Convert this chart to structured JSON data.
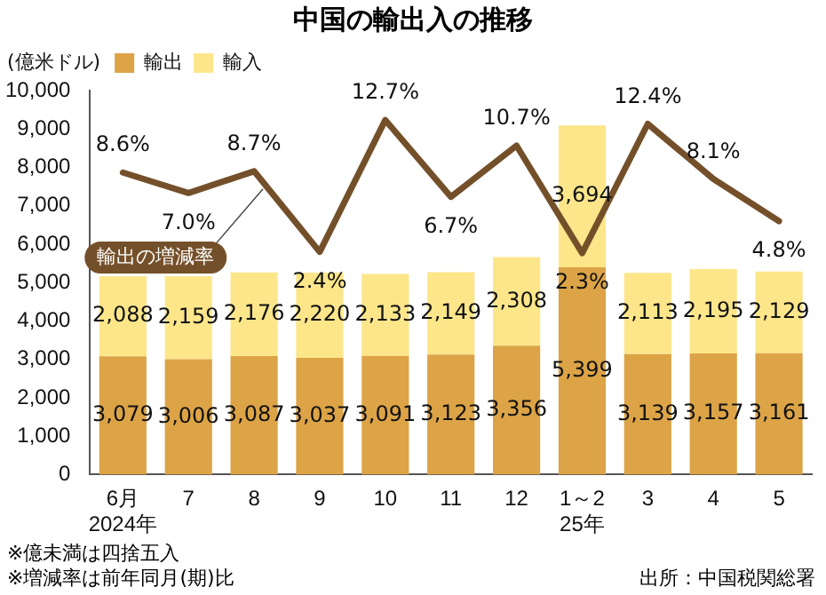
{
  "chart_data": {
    "type": "bar",
    "title": "中国の輸出入の推移",
    "ylabel": "(億米ドル)",
    "categories": [
      "6月\n2024年",
      "7",
      "8",
      "9",
      "10",
      "11",
      "12",
      "1～2\n25年",
      "3",
      "4",
      "5"
    ],
    "stacked": true,
    "legend": "top left",
    "grid": false,
    "ylim": [
      0,
      10000
    ],
    "yticks": [
      {
        "value": 0,
        "label": "0"
      },
      {
        "value": 1000,
        "label": "1,000"
      },
      {
        "value": 2000,
        "label": "2,000"
      },
      {
        "value": 3000,
        "label": "3,000"
      },
      {
        "value": 4000,
        "label": "4,000"
      },
      {
        "value": 5000,
        "label": "5,000"
      },
      {
        "value": 6000,
        "label": "6,000"
      },
      {
        "value": 7000,
        "label": "7,000"
      },
      {
        "value": 8000,
        "label": "8,000"
      },
      {
        "value": 9000,
        "label": "9,000"
      },
      {
        "value": 10000,
        "label": "10,000"
      }
    ],
    "series": [
      {
        "name": "輸出",
        "color": "#dca446",
        "values": [
          3079,
          3006,
          3087,
          3037,
          3091,
          3123,
          3356,
          5399,
          3139,
          3157,
          3161
        ],
        "value_labels": [
          "3,079",
          "3,006",
          "3,087",
          "3,037",
          "3,091",
          "3,123",
          "3,356",
          "5,399",
          "3,139",
          "3,157",
          "3,161"
        ]
      },
      {
        "name": "輸入",
        "color": "#fde68a",
        "values": [
          2088,
          2159,
          2176,
          2220,
          2133,
          2149,
          2308,
          3694,
          2113,
          2195,
          2129
        ],
        "value_labels": [
          "2,088",
          "2,159",
          "2,176",
          "2,220",
          "2,133",
          "2,149",
          "2,308",
          "3,694",
          "2,113",
          "2,195",
          "2,129"
        ]
      },
      {
        "name": "輸出の増減率",
        "type": "line",
        "axis": "y2",
        "color": "#74502a",
        "values": [
          8.6,
          7.0,
          8.7,
          2.4,
          12.7,
          6.7,
          10.7,
          2.3,
          12.4,
          8.1,
          4.8
        ],
        "value_labels": [
          "8.6%",
          "7.0%",
          "8.7%",
          "2.4%",
          "12.7%",
          "6.7%",
          "10.7%",
          "2.3%",
          "12.4%",
          "8.1%",
          "4.8%"
        ]
      }
    ],
    "annotations": [
      "※億未満は四捨五入",
      "※増減率は前年同月(期)比",
      "出所：中国税関総署"
    ]
  }
}
